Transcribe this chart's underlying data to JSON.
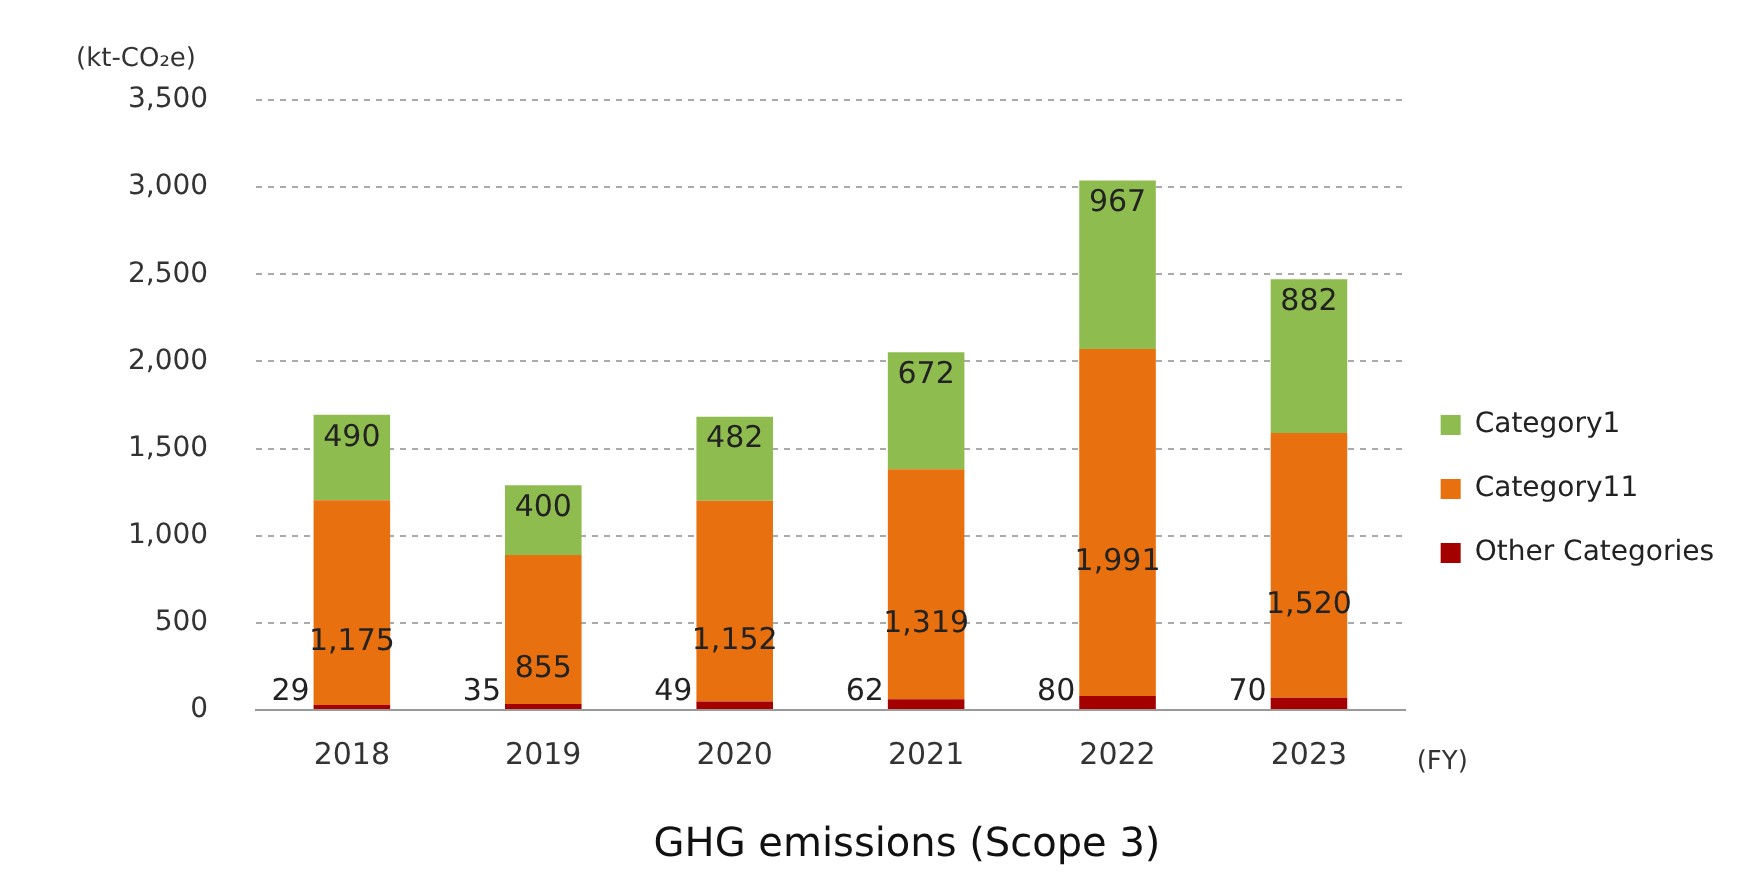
{
  "chart_data": {
    "type": "bar",
    "stacked": true,
    "title": "GHG emissions (Scope 3)",
    "ylabel": "(kt-CO₂e)",
    "xlabel": "(FY)",
    "categories": [
      "2018",
      "2019",
      "2020",
      "2021",
      "2022",
      "2023"
    ],
    "series": [
      {
        "name": "Other Categories",
        "color": "#a50000",
        "values": [
          29,
          35,
          49,
          62,
          80,
          70
        ],
        "value_labels": [
          "29",
          "35",
          "49",
          "62",
          "80",
          "70"
        ]
      },
      {
        "name": "Category11",
        "color": "#e8700f",
        "values": [
          1175,
          855,
          1152,
          1319,
          1991,
          1520
        ],
        "value_labels": [
          "1,175",
          "855",
          "1,152",
          "1,319",
          "1,991",
          "1,520"
        ]
      },
      {
        "name": "Category1",
        "color": "#8fbc4f",
        "values": [
          490,
          400,
          482,
          672,
          967,
          882
        ],
        "value_labels": [
          "490",
          "400",
          "482",
          "672",
          "967",
          "882"
        ]
      }
    ],
    "ylim": [
      0,
      3500
    ],
    "yticks": [
      {
        "value": 0,
        "label": "0"
      },
      {
        "value": 500,
        "label": "500"
      },
      {
        "value": 1000,
        "label": "1,000"
      },
      {
        "value": 1500,
        "label": "1,500"
      },
      {
        "value": 2000,
        "label": "2,000"
      },
      {
        "value": 2500,
        "label": "2,500"
      },
      {
        "value": 3000,
        "label": "3,000"
      },
      {
        "value": 3500,
        "label": "3,500"
      }
    ],
    "grid": "y",
    "legend": "right"
  }
}
